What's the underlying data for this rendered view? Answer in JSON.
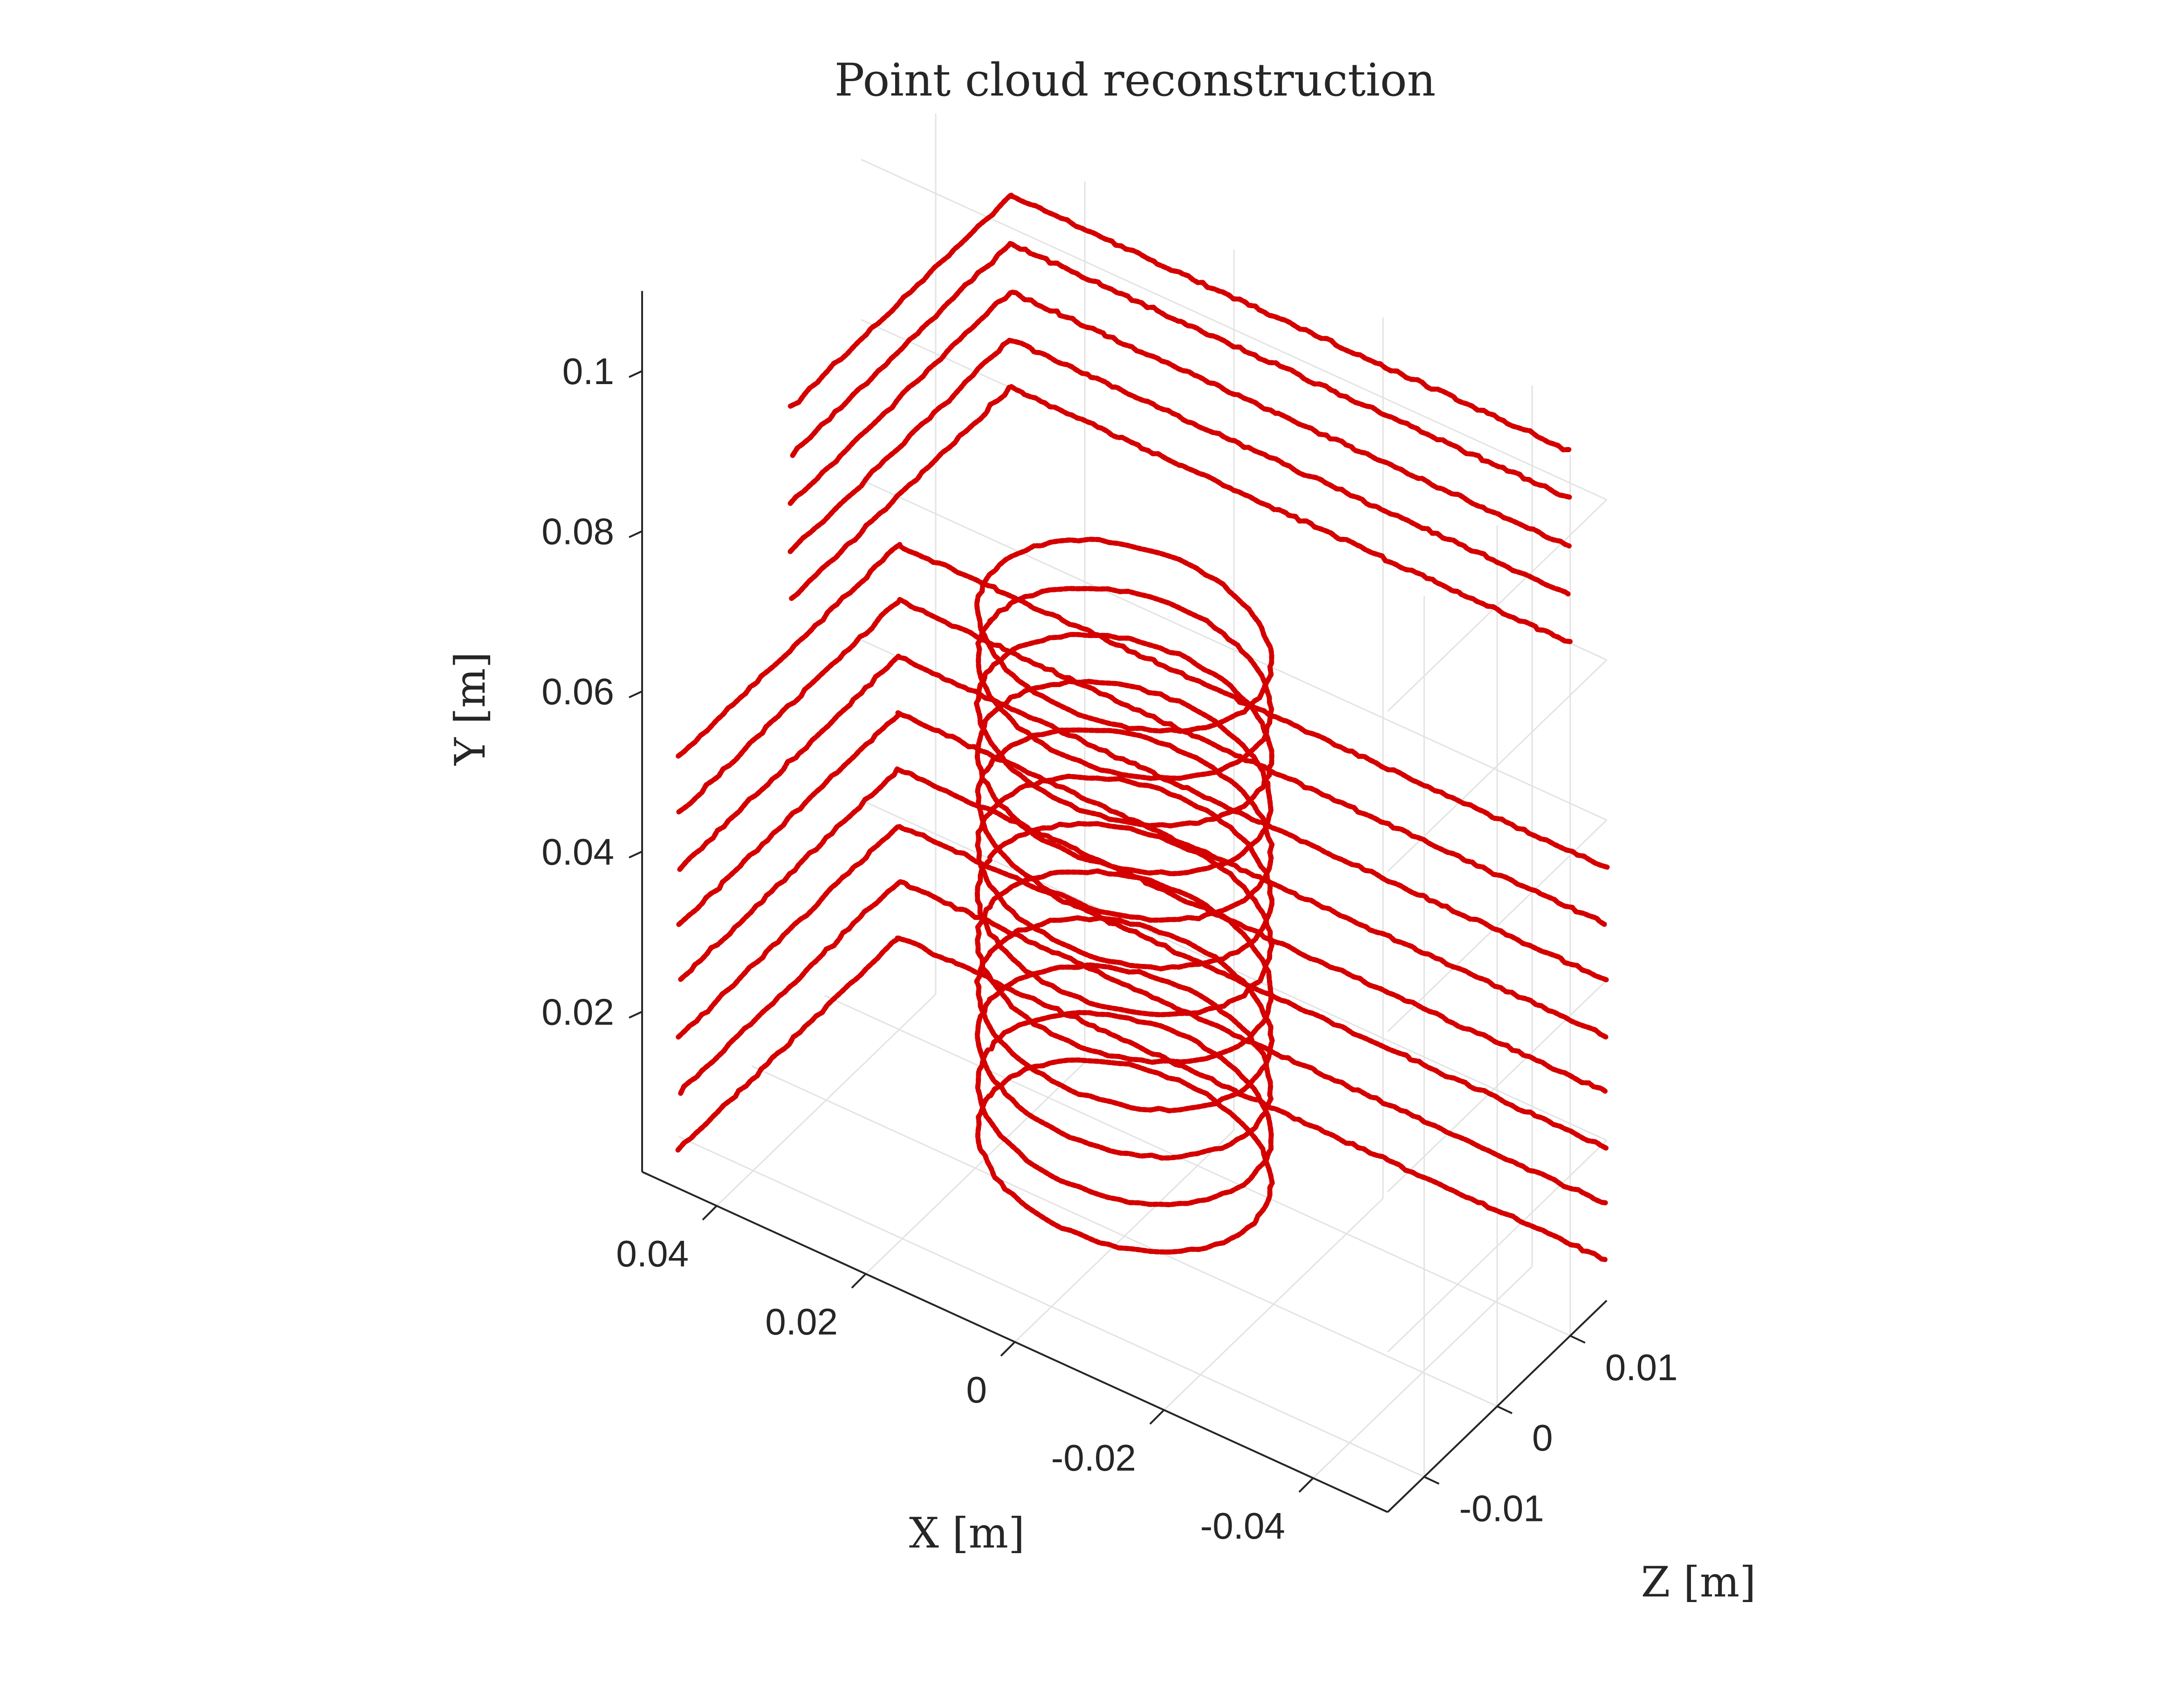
{
  "chart_data": {
    "type": "scatter",
    "projection": "3d",
    "title": "Point cloud reconstruction",
    "xlabel": "X [m]",
    "ylabel": "Y [m]",
    "zlabel": "Z [m]",
    "xlim": [
      -0.05,
      0.05
    ],
    "ylim": [
      0,
      0.11
    ],
    "zlim": [
      -0.015,
      0.015
    ],
    "x_ticks": [
      "0.04",
      "0.02",
      "0",
      "-0.02",
      "-0.04"
    ],
    "y_ticks": [
      "0.1",
      "0.08",
      "0.06",
      "0.04",
      "0.02"
    ],
    "z_ticks": [
      "0.01",
      "0",
      "-0.01"
    ],
    "grid": true,
    "marker_color": "#d40000",
    "series": [
      {
        "part": "lower-bracket",
        "description_shape": "L-shaped profile, 8 scan lines",
        "y_levels": [
          0.005,
          0.012,
          0.019,
          0.026,
          0.033,
          0.04,
          0.047,
          0.054
        ],
        "x_range": [
          -0.05,
          0.045
        ],
        "z_range": [
          -0.015,
          0.015
        ]
      },
      {
        "part": "upper-bracket",
        "description_shape": "L-shaped profile, 5 scan lines",
        "y_levels": [
          0.08,
          0.086,
          0.092,
          0.098,
          0.104
        ],
        "x_range": [
          -0.045,
          0.03
        ],
        "z_range": [
          -0.015,
          0.015
        ]
      },
      {
        "part": "cylinder",
        "description_shape": "helical rings, 12 loops",
        "center_x": 0.0,
        "center_z": 0.0,
        "radius": 0.018,
        "y_range": [
          0.01,
          0.075
        ]
      }
    ]
  }
}
